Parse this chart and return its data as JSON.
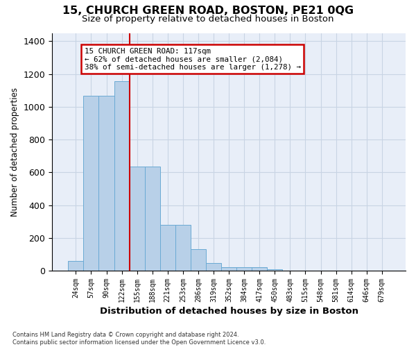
{
  "title": "15, CHURCH GREEN ROAD, BOSTON, PE21 0QG",
  "subtitle": "Size of property relative to detached houses in Boston",
  "xlabel": "Distribution of detached houses by size in Boston",
  "ylabel": "Number of detached properties",
  "categories": [
    "24sqm",
    "57sqm",
    "90sqm",
    "122sqm",
    "155sqm",
    "188sqm",
    "221sqm",
    "253sqm",
    "286sqm",
    "319sqm",
    "352sqm",
    "384sqm",
    "417sqm",
    "450sqm",
    "483sqm",
    "515sqm",
    "548sqm",
    "581sqm",
    "614sqm",
    "646sqm",
    "679sqm"
  ],
  "values": [
    60,
    1065,
    1065,
    1155,
    635,
    635,
    280,
    280,
    130,
    45,
    20,
    20,
    20,
    10,
    0,
    0,
    0,
    0,
    0,
    0,
    0
  ],
  "bar_color": "#b8d0e8",
  "bar_edge_color": "#6aaad4",
  "vline_pos": 3.5,
  "annotation_text": "15 CHURCH GREEN ROAD: 117sqm\n← 62% of detached houses are smaller (2,084)\n38% of semi-detached houses are larger (1,278) →",
  "annotation_box_facecolor": "#ffffff",
  "annotation_box_edgecolor": "#cc0000",
  "vline_color": "#cc0000",
  "grid_color": "#c8d4e4",
  "background_color": "#e8eef8",
  "footnote": "Contains HM Land Registry data © Crown copyright and database right 2024.\nContains public sector information licensed under the Open Government Licence v3.0.",
  "ylim": [
    0,
    1450
  ],
  "tick_interval": 200
}
